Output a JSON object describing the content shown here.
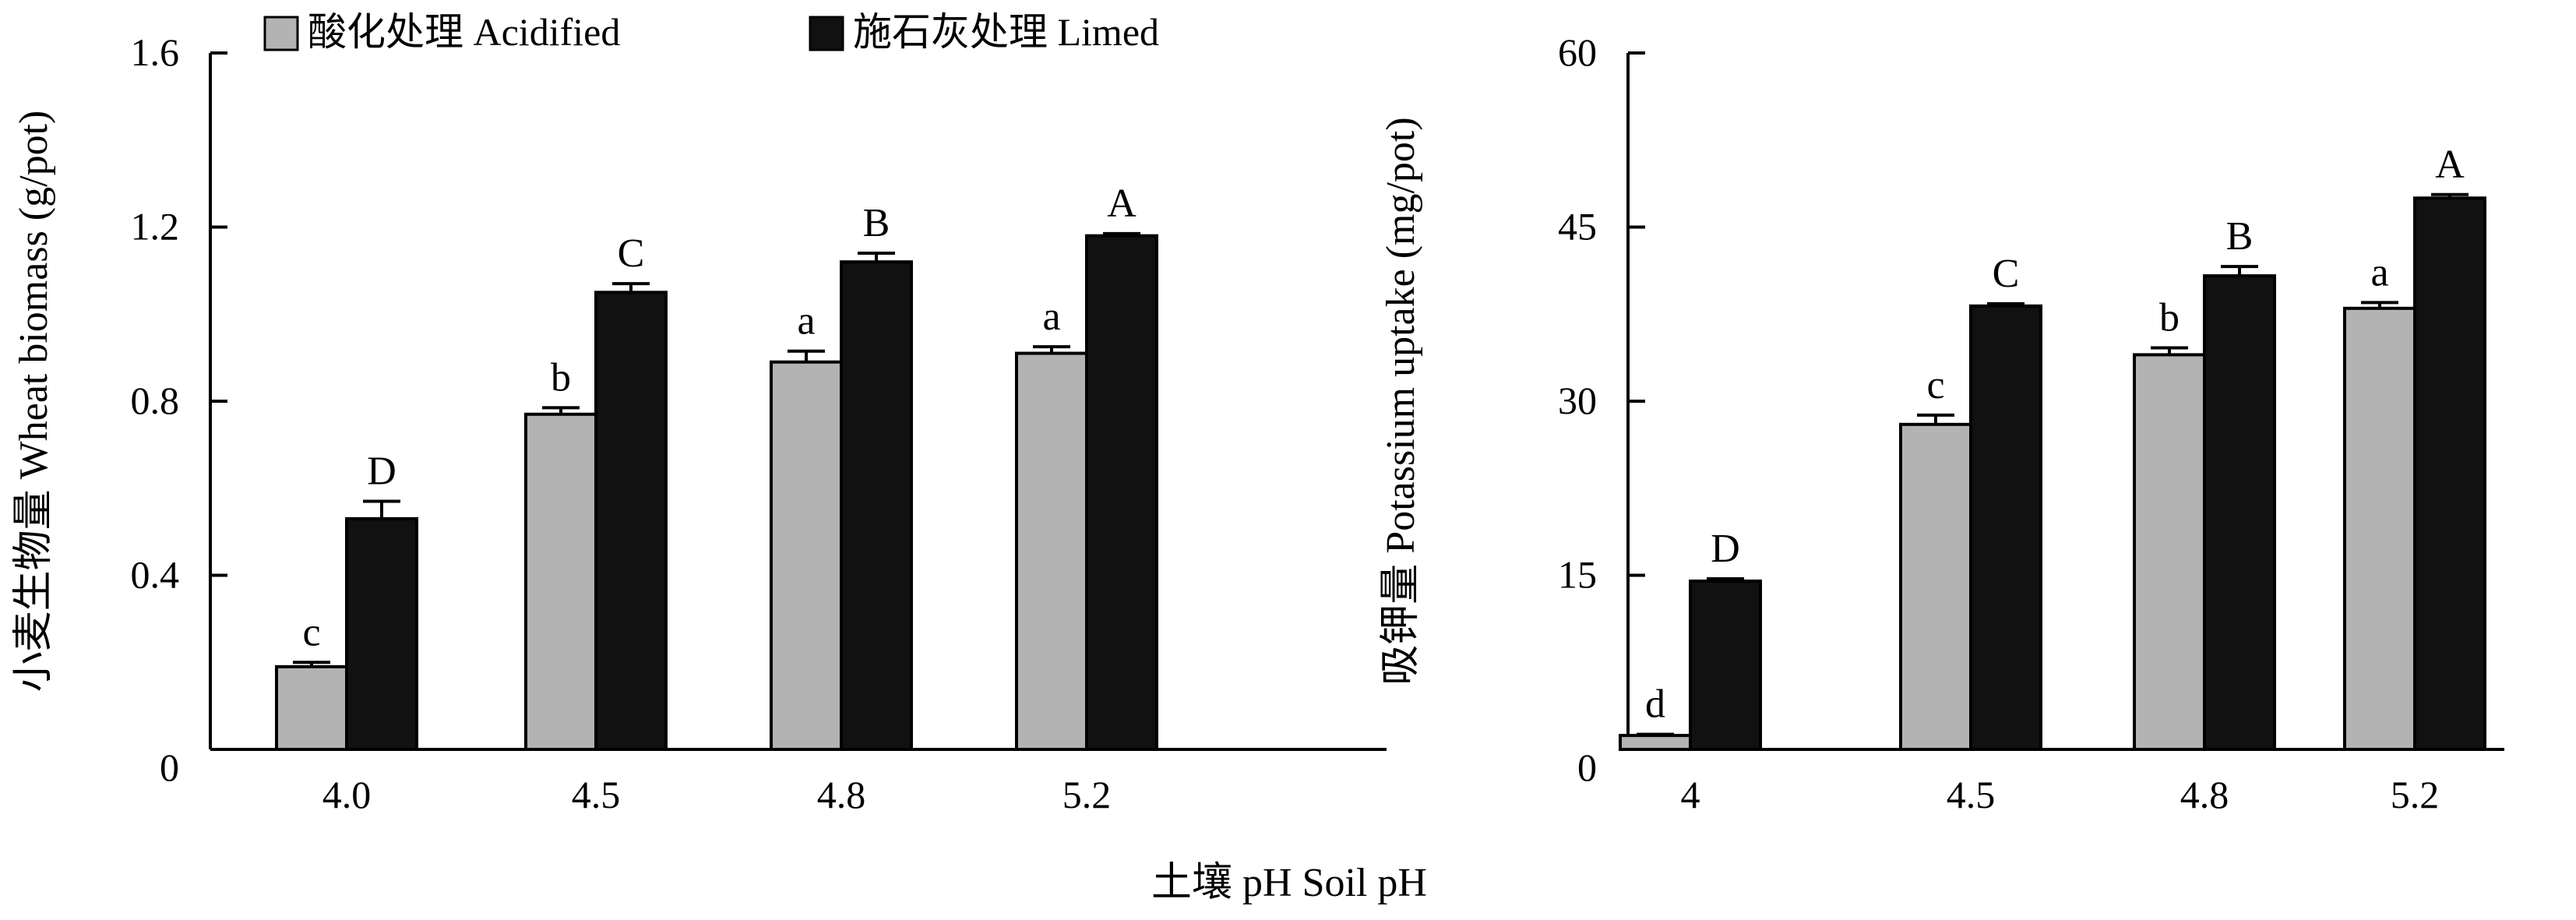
{
  "legend": {
    "acidified": "酸化处理 Acidified",
    "limed": "施石灰处理 Limed"
  },
  "shared_xlabel": "土壤 pH Soil pH",
  "colors": {
    "acidified": "#b3b3b3",
    "limed": "#111111",
    "axis": "#000000"
  },
  "chart_data": [
    {
      "type": "bar",
      "ylabel": "小麦生物量 Wheat biomass (g/pot)",
      "ylim": [
        0,
        1.6
      ],
      "yticks": [
        0,
        0.4,
        0.8,
        1.2,
        1.6
      ],
      "ytick_labels": [
        "0",
        "0.4",
        "0.8",
        "1.2",
        "1.6"
      ],
      "categories": [
        "4.0",
        "4.5",
        "4.8",
        "5.2"
      ],
      "series": [
        {
          "name": "酸化处理 Acidified",
          "key": "acidified",
          "values": [
            0.19,
            0.77,
            0.89,
            0.91
          ],
          "errors": [
            0.01,
            0.015,
            0.025,
            0.015
          ],
          "letters": [
            "c",
            "b",
            "a",
            "a"
          ]
        },
        {
          "name": "施石灰处理 Limed",
          "key": "limed",
          "values": [
            0.53,
            1.05,
            1.12,
            1.18
          ],
          "errors": [
            0.04,
            0.02,
            0.02,
            0.005
          ],
          "letters": [
            "D",
            "C",
            "B",
            "A"
          ]
        }
      ]
    },
    {
      "type": "bar",
      "ylabel": "吸钾量 Potassium uptake (mg/pot)",
      "ylim": [
        0,
        60
      ],
      "yticks": [
        0,
        15,
        30,
        45,
        60
      ],
      "ytick_labels": [
        "0",
        "15",
        "30",
        "45",
        "60"
      ],
      "categories": [
        "4",
        "4.5",
        "4.8",
        "5.2"
      ],
      "series": [
        {
          "name": "酸化处理 Acidified",
          "key": "acidified",
          "values": [
            1.2,
            28.0,
            34.0,
            38.0
          ],
          "errors": [
            0.1,
            0.8,
            0.6,
            0.5
          ],
          "letters": [
            "d",
            "c",
            "b",
            "a"
          ]
        },
        {
          "name": "施石灰处理 Limed",
          "key": "limed",
          "values": [
            14.5,
            38.2,
            40.8,
            47.5
          ],
          "errors": [
            0.2,
            0.2,
            0.8,
            0.3
          ],
          "letters": [
            "D",
            "C",
            "B",
            "A"
          ]
        }
      ]
    }
  ]
}
